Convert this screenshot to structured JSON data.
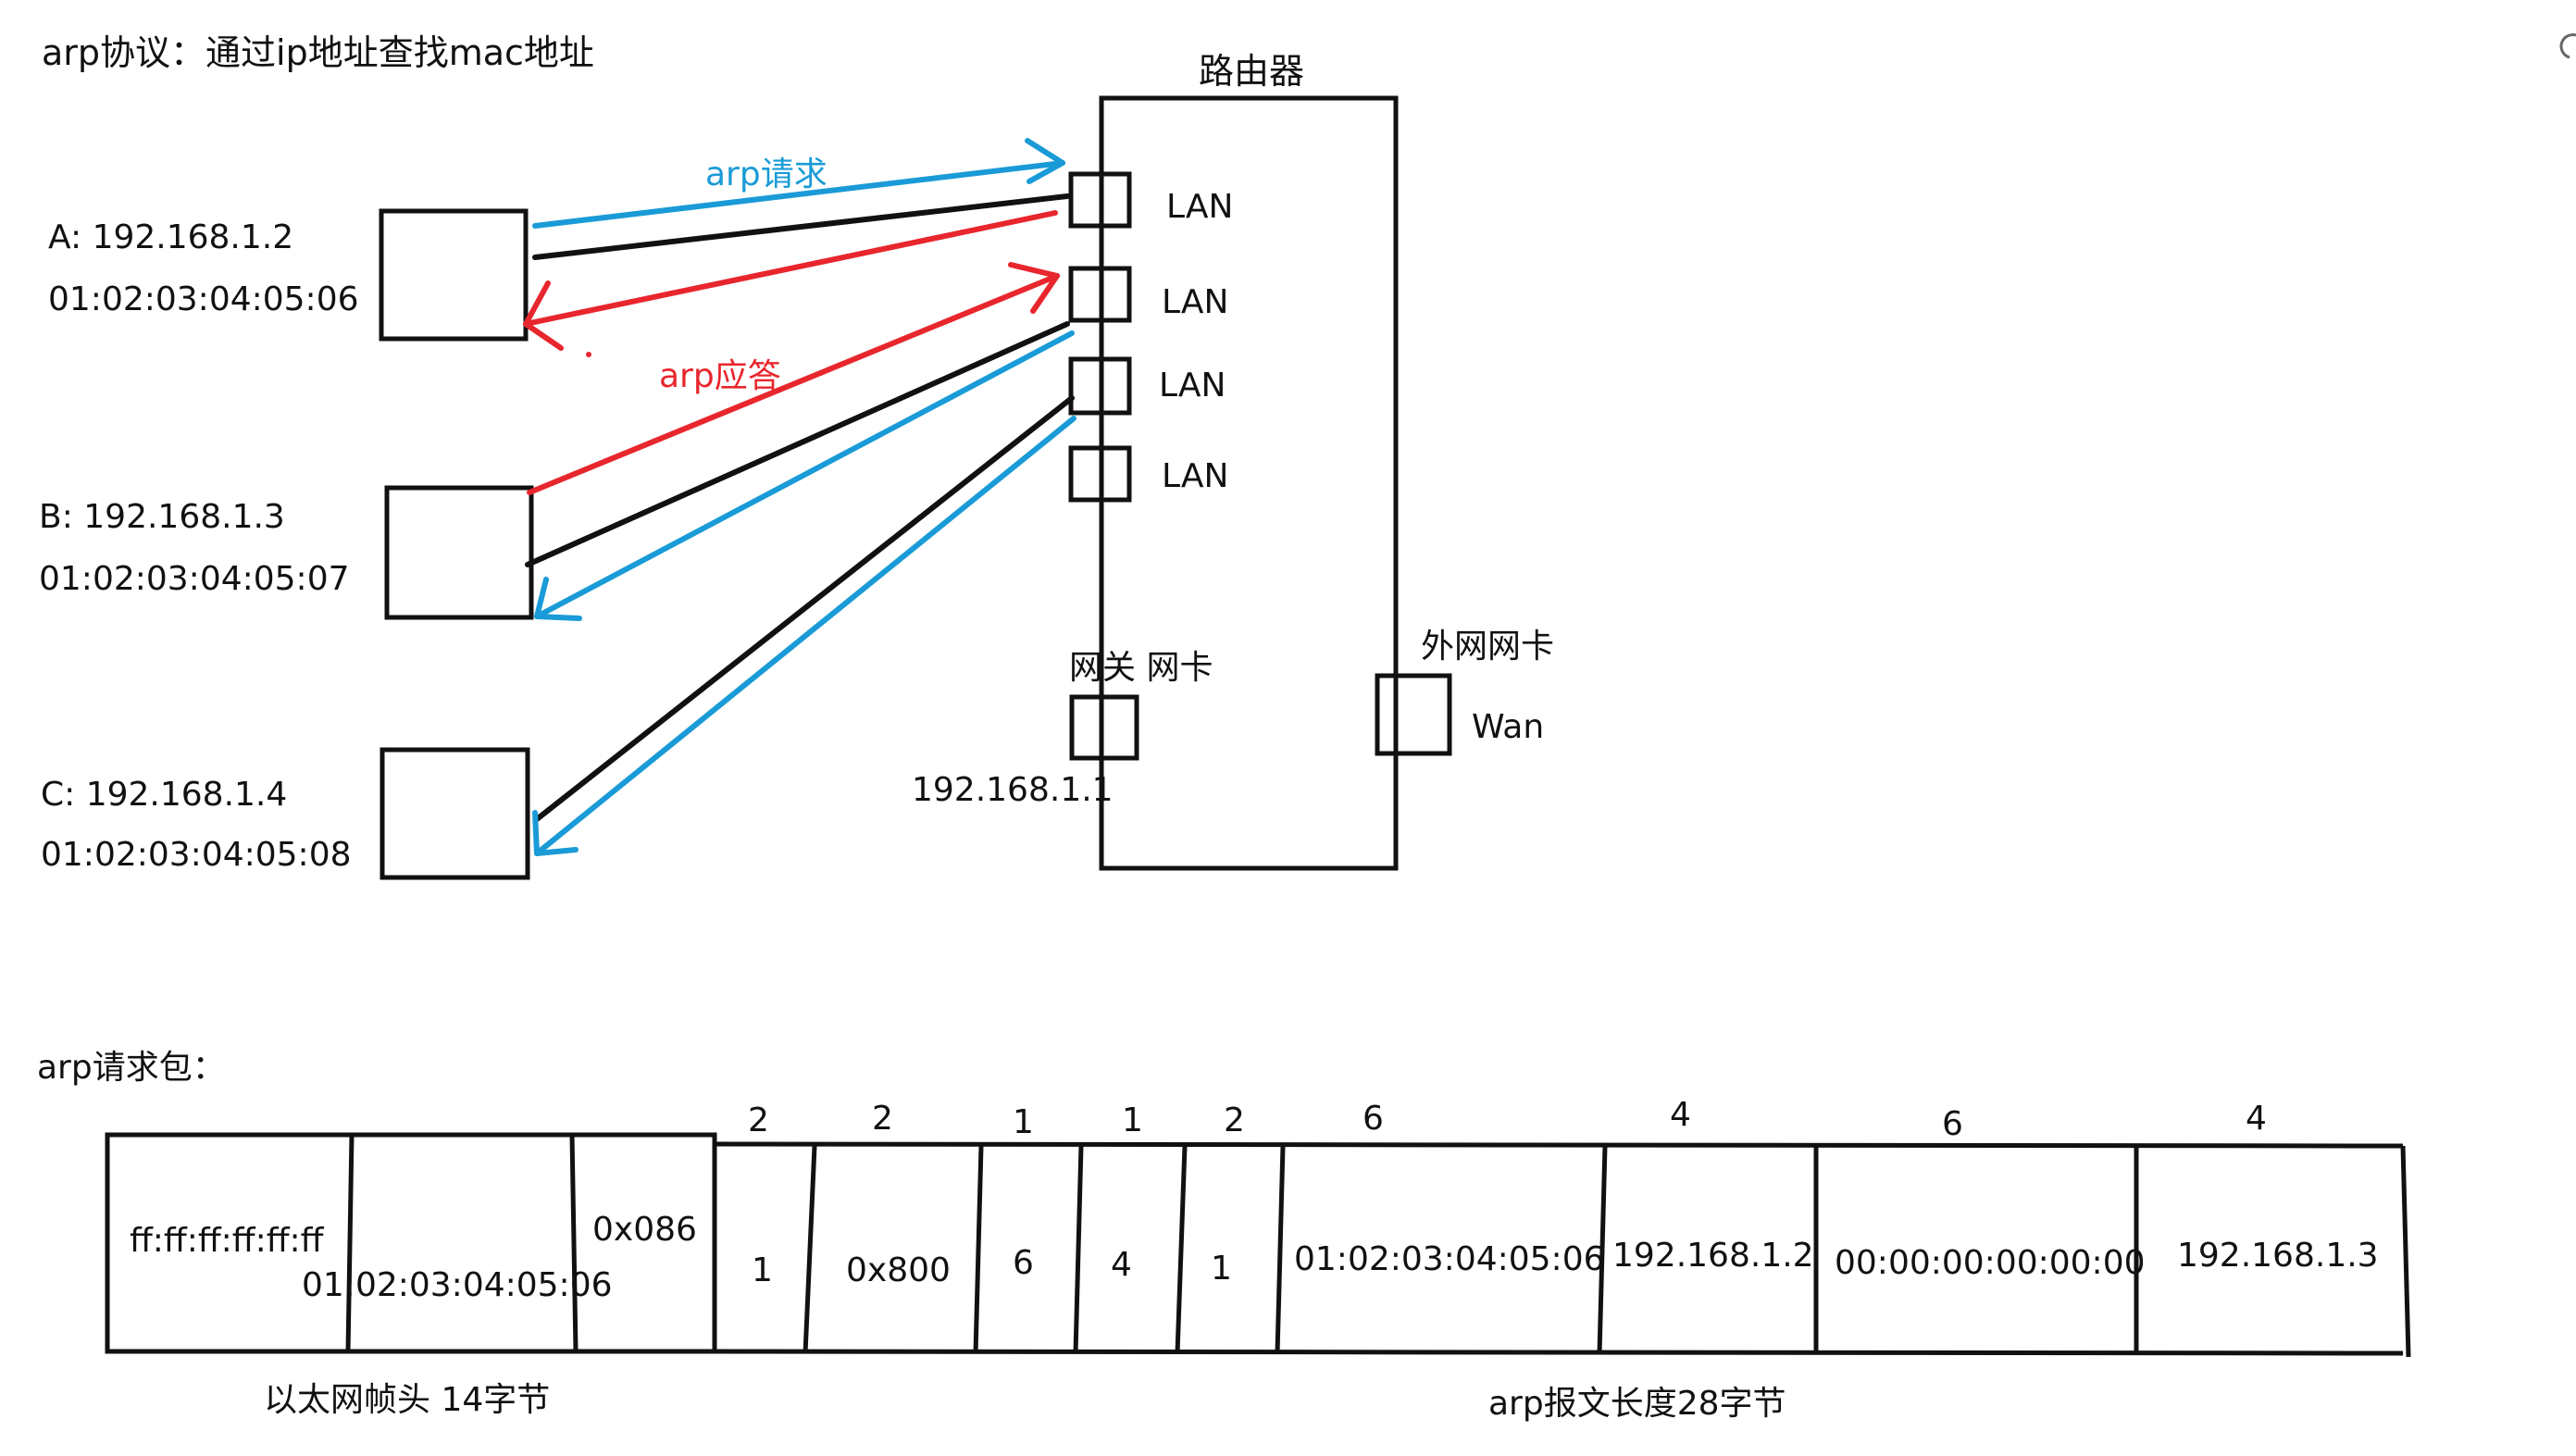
{
  "title": "arp协议：通过ip地址查找mac地址",
  "router": {
    "label": "路由器",
    "lan_ports": [
      "LAN",
      "LAN",
      "LAN",
      "LAN"
    ],
    "gateway_label": "网关 网卡",
    "gateway_ip": "192.168.1.1",
    "wan_title": "外网网卡",
    "wan_label": "Wan"
  },
  "hosts": [
    {
      "ip": "A: 192.168.1.2",
      "mac": "01:02:03:04:05:06"
    },
    {
      "ip": "B: 192.168.1.3",
      "mac": "01:02:03:04:05:07"
    },
    {
      "ip": "C: 192.168.1.4",
      "mac": "01:02:03:04:05:08"
    }
  ],
  "arrows": {
    "request": "arp请求",
    "reply": "arp应答"
  },
  "colors": {
    "request": "#1a9bd7",
    "reply": "#e8262d",
    "wire": "#111111"
  },
  "packet": {
    "title": "arp请求包：",
    "ethernet_cells": [
      "ff:ff:ff:ff:ff:ff",
      "01:02:03:04:05:06",
      "0x086"
    ],
    "arp_sizes": [
      "2",
      "2",
      "1",
      "1",
      "2",
      "6",
      "4",
      "6",
      "4"
    ],
    "arp_cells": [
      "1",
      "0x800",
      "6",
      "4",
      "1",
      "01:02:03:04:05:06",
      "192.168.1.2",
      "00:00:00:00:00:00",
      "192.168.1.3"
    ],
    "ethernet_caption": "以太网帧头 14字节",
    "arp_caption": "arp报文长度28字节"
  }
}
